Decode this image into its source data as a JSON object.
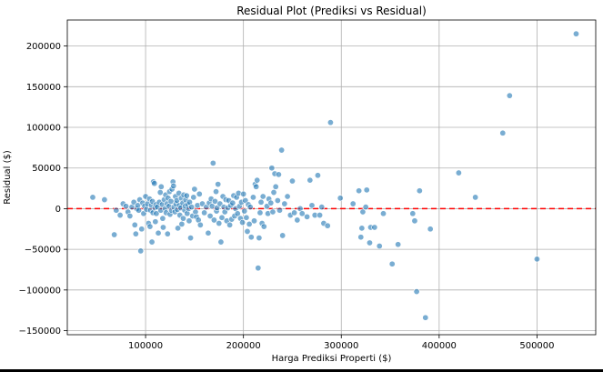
{
  "chart_data": {
    "type": "scatter",
    "title": "Residual Plot (Prediksi vs Residual)",
    "xlabel": "Harga Prediksi Properti ($)",
    "ylabel": "Residual ($)",
    "xlim": [
      20000,
      560000
    ],
    "ylim": [
      -155000,
      232000
    ],
    "xticks": [
      100000,
      200000,
      300000,
      400000,
      500000
    ],
    "xtick_labels": [
      "100000",
      "200000",
      "300000",
      "400000",
      "500000"
    ],
    "yticks": [
      -150000,
      -100000,
      -50000,
      0,
      50000,
      100000,
      150000,
      200000
    ],
    "ytick_labels": [
      "−150000",
      "−100000",
      "−50000",
      "0",
      "50000",
      "100000",
      "150000",
      "200000"
    ],
    "grid": true,
    "reference_line": {
      "y": 0,
      "style": "dashed",
      "color": "#ff0000"
    },
    "marker_color": "#1f77b4",
    "points": [
      [
        46000,
        14000
      ],
      [
        58000,
        11000
      ],
      [
        68000,
        -32000
      ],
      [
        70000,
        -2000
      ],
      [
        74000,
        -8000
      ],
      [
        77000,
        6000
      ],
      [
        80000,
        3000
      ],
      [
        82000,
        -4000
      ],
      [
        84000,
        -9000
      ],
      [
        86000,
        2000
      ],
      [
        88000,
        8000
      ],
      [
        89000,
        -20000
      ],
      [
        90000,
        -31000
      ],
      [
        91000,
        0
      ],
      [
        92000,
        4000
      ],
      [
        93000,
        -2000
      ],
      [
        94000,
        11000
      ],
      [
        95000,
        -52000
      ],
      [
        96000,
        -25000
      ],
      [
        97000,
        7000
      ],
      [
        98000,
        -6000
      ],
      [
        99000,
        3000
      ],
      [
        100000,
        15000
      ],
      [
        101000,
        -1000
      ],
      [
        102000,
        6000
      ],
      [
        103000,
        -18000
      ],
      [
        104000,
        12000
      ],
      [
        104500,
        -22000
      ],
      [
        105000,
        -2000
      ],
      [
        106000,
        4000
      ],
      [
        106500,
        -41000
      ],
      [
        107000,
        9000
      ],
      [
        107500,
        -5000
      ],
      [
        108000,
        33000
      ],
      [
        109000,
        31000
      ],
      [
        109500,
        1000
      ],
      [
        110000,
        -16000
      ],
      [
        110500,
        5000
      ],
      [
        111000,
        -6000
      ],
      [
        112000,
        2000
      ],
      [
        113000,
        -30000
      ],
      [
        114000,
        8000
      ],
      [
        115000,
        20000
      ],
      [
        115500,
        -2000
      ],
      [
        116000,
        27000
      ],
      [
        117000,
        5000
      ],
      [
        117500,
        -12000
      ],
      [
        118000,
        -23000
      ],
      [
        119000,
        11000
      ],
      [
        120000,
        0
      ],
      [
        120500,
        17000
      ],
      [
        121000,
        -5000
      ],
      [
        122000,
        6000
      ],
      [
        122500,
        -31000
      ],
      [
        123000,
        13000
      ],
      [
        124000,
        3000
      ],
      [
        124500,
        21000
      ],
      [
        125000,
        -7000
      ],
      [
        126000,
        9000
      ],
      [
        126500,
        -2000
      ],
      [
        127000,
        24000
      ],
      [
        128000,
        33000
      ],
      [
        128500,
        28000
      ],
      [
        129000,
        2000
      ],
      [
        130000,
        -4000
      ],
      [
        130500,
        15000
      ],
      [
        131000,
        6000
      ],
      [
        132000,
        10000
      ],
      [
        132500,
        -1000
      ],
      [
        133000,
        -24000
      ],
      [
        134000,
        19000
      ],
      [
        134500,
        4000
      ],
      [
        135000,
        -8000
      ],
      [
        136000,
        1000
      ],
      [
        136500,
        13000
      ],
      [
        137000,
        -19000
      ],
      [
        138000,
        7000
      ],
      [
        138500,
        -12000
      ],
      [
        139000,
        17000
      ],
      [
        140000,
        -2000
      ],
      [
        140500,
        3000
      ],
      [
        141000,
        11000
      ],
      [
        142000,
        16000
      ],
      [
        142500,
        -6000
      ],
      [
        143000,
        5000
      ],
      [
        144000,
        0
      ],
      [
        144500,
        -15000
      ],
      [
        145000,
        8000
      ],
      [
        146000,
        -36000
      ],
      [
        147000,
        2000
      ],
      [
        148000,
        -9000
      ],
      [
        149000,
        14000
      ],
      [
        150000,
        24000
      ],
      [
        151000,
        -4000
      ],
      [
        152000,
        -10000
      ],
      [
        153000,
        4000
      ],
      [
        154000,
        -14000
      ],
      [
        155000,
        18000
      ],
      [
        156000,
        -20000
      ],
      [
        158000,
        6000
      ],
      [
        160000,
        -5000
      ],
      [
        162000,
        2000
      ],
      [
        164000,
        -30000
      ],
      [
        165000,
        7000
      ],
      [
        166000,
        -9000
      ],
      [
        167000,
        12000
      ],
      [
        168000,
        3000
      ],
      [
        169000,
        56000
      ],
      [
        170000,
        -14000
      ],
      [
        171000,
        9000
      ],
      [
        172000,
        21000
      ],
      [
        172500,
        -3000
      ],
      [
        173000,
        1000
      ],
      [
        174000,
        30000
      ],
      [
        175000,
        -18000
      ],
      [
        176000,
        6000
      ],
      [
        177000,
        -41000
      ],
      [
        178000,
        -11000
      ],
      [
        179000,
        15000
      ],
      [
        180000,
        2000
      ],
      [
        181000,
        -4000
      ],
      [
        182000,
        11000
      ],
      [
        183000,
        -15000
      ],
      [
        184000,
        1000
      ],
      [
        185000,
        10000
      ],
      [
        186000,
        -20000
      ],
      [
        187000,
        4000
      ],
      [
        188000,
        -13000
      ],
      [
        189000,
        7000
      ],
      [
        190000,
        16000
      ],
      [
        191000,
        -9000
      ],
      [
        192000,
        0
      ],
      [
        193000,
        14000
      ],
      [
        194000,
        -6000
      ],
      [
        195000,
        19000
      ],
      [
        196000,
        3000
      ],
      [
        197000,
        -12000
      ],
      [
        198000,
        8000
      ],
      [
        199000,
        -17000
      ],
      [
        200000,
        18000
      ],
      [
        201000,
        -3000
      ],
      [
        202000,
        10000
      ],
      [
        203000,
        -11000
      ],
      [
        204000,
        -28000
      ],
      [
        205000,
        5000
      ],
      [
        206000,
        -19000
      ],
      [
        207000,
        2000
      ],
      [
        208000,
        -35000
      ],
      [
        210000,
        14000
      ],
      [
        211000,
        -15000
      ],
      [
        212000,
        30000
      ],
      [
        213000,
        27000
      ],
      [
        214000,
        35000
      ],
      [
        215000,
        -73000
      ],
      [
        216000,
        -36000
      ],
      [
        217000,
        -5000
      ],
      [
        218000,
        8000
      ],
      [
        219000,
        -18000
      ],
      [
        220000,
        15000
      ],
      [
        221000,
        -22000
      ],
      [
        224000,
        3000
      ],
      [
        225000,
        -6000
      ],
      [
        226000,
        12000
      ],
      [
        228000,
        7000
      ],
      [
        229000,
        50000
      ],
      [
        230000,
        -4000
      ],
      [
        231000,
        20000
      ],
      [
        232000,
        43000
      ],
      [
        233000,
        27000
      ],
      [
        235000,
        10000
      ],
      [
        236000,
        42000
      ],
      [
        237000,
        -2000
      ],
      [
        239000,
        72000
      ],
      [
        240000,
        -33000
      ],
      [
        242000,
        6000
      ],
      [
        245000,
        15000
      ],
      [
        248000,
        -8000
      ],
      [
        250000,
        34000
      ],
      [
        252000,
        -5000
      ],
      [
        255000,
        -14000
      ],
      [
        258000,
        0
      ],
      [
        260000,
        -6000
      ],
      [
        265000,
        -10000
      ],
      [
        268000,
        35000
      ],
      [
        270000,
        4000
      ],
      [
        273000,
        -8000
      ],
      [
        276000,
        41000
      ],
      [
        278000,
        -8000
      ],
      [
        280000,
        2000
      ],
      [
        282000,
        -18000
      ],
      [
        286000,
        -21000
      ],
      [
        289000,
        106000
      ],
      [
        299000,
        13000
      ],
      [
        312000,
        6000
      ],
      [
        318000,
        22000
      ],
      [
        320000,
        -35000
      ],
      [
        321000,
        -24000
      ],
      [
        322000,
        -4000
      ],
      [
        325000,
        2000
      ],
      [
        326000,
        23000
      ],
      [
        329000,
        -42000
      ],
      [
        330000,
        -23000
      ],
      [
        334000,
        -23000
      ],
      [
        339000,
        -46000
      ],
      [
        343000,
        -6000
      ],
      [
        352000,
        -68000
      ],
      [
        358000,
        -44000
      ],
      [
        373000,
        -6000
      ],
      [
        375000,
        -15000
      ],
      [
        377000,
        -102000
      ],
      [
        380000,
        22000
      ],
      [
        386000,
        -134000
      ],
      [
        391000,
        -25000
      ],
      [
        420000,
        44000
      ],
      [
        437000,
        14000
      ],
      [
        465000,
        93000
      ],
      [
        472000,
        139000
      ],
      [
        500000,
        -62000
      ],
      [
        540000,
        215000
      ]
    ]
  }
}
